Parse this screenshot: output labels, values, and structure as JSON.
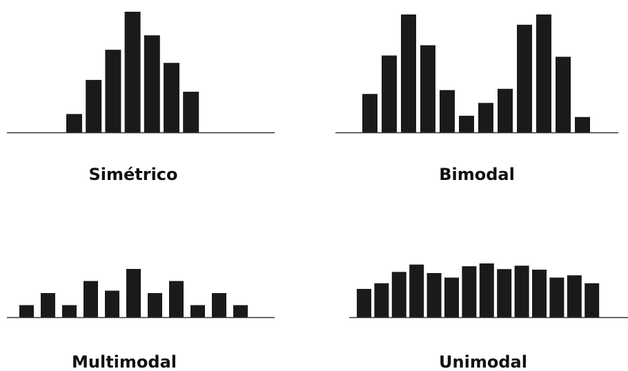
{
  "chart_data": [
    {
      "type": "bar",
      "title": "Simétrico",
      "values": [
        1.4,
        4.0,
        6.3,
        9.2,
        7.4,
        5.3,
        3.1
      ],
      "ylim": [
        0,
        9.2
      ],
      "grid": false,
      "axes": "baseline only"
    },
    {
      "type": "bar",
      "title": "Bimodal",
      "values": [
        3.0,
        6.0,
        9.2,
        6.8,
        3.3,
        1.3,
        2.3,
        3.4,
        8.4,
        9.2,
        5.9,
        1.2
      ],
      "ylim": [
        0,
        9.2
      ],
      "grid": false,
      "axes": "baseline only"
    },
    {
      "type": "bar",
      "title": "Multimodal",
      "values": [
        1.0,
        2.0,
        1.0,
        3.0,
        2.2,
        4.0,
        2.0,
        3.0,
        1.0,
        2.0,
        1.0
      ],
      "ylim": [
        0,
        4.0
      ],
      "grid": false,
      "axes": "baseline only"
    },
    {
      "type": "bar",
      "title": "Unimodal",
      "values": [
        5.0,
        6.0,
        8.0,
        9.3,
        7.8,
        7.0,
        9.0,
        9.5,
        8.5,
        9.1,
        8.4,
        7.0,
        7.4,
        6.0
      ],
      "ylim": [
        0,
        9.5
      ],
      "grid": false,
      "axes": "baseline only"
    }
  ],
  "colors": {
    "bar": "#1a1a1a",
    "axis": "#333333",
    "label": "#111111"
  }
}
